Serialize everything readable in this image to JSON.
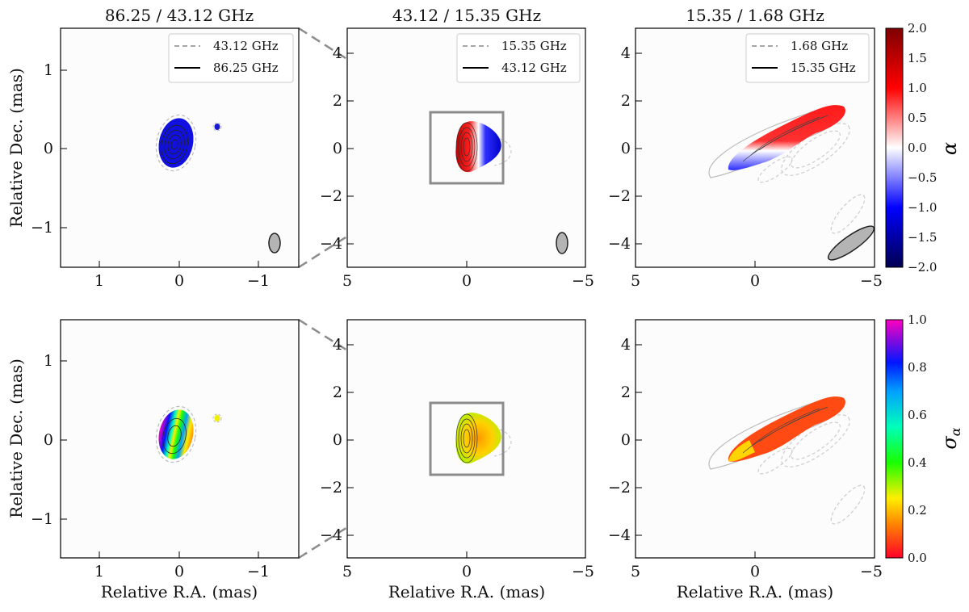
{
  "chart_data": [
    {
      "type": "heatmap",
      "title": "86.25 / 43.12 GHz",
      "quantity": "spectral index",
      "xlabel": "",
      "ylabel": "Relative Dec. (mas)",
      "xlim": [
        1.5,
        -1.5
      ],
      "ylim": [
        -1.5,
        1.5
      ],
      "xticks": [
        "1",
        "0",
        "−1"
      ],
      "yticks": [
        "1",
        "0",
        "−1"
      ],
      "legend": [
        {
          "label": "43.12 GHz",
          "style": "dashed"
        },
        {
          "label": "86.25 GHz",
          "style": "solid"
        }
      ],
      "legend_location": "top-right",
      "beam_shown": true,
      "core_value": -0.9,
      "knot_value": -1.3
    },
    {
      "type": "heatmap",
      "title": "43.12 / 15.35 GHz",
      "quantity": "spectral index",
      "xlabel": "",
      "ylabel": "",
      "xlim": [
        5,
        -5
      ],
      "ylim": [
        -5,
        5
      ],
      "xticks": [
        "5",
        "0",
        "−5"
      ],
      "yticks": [
        "4",
        "2",
        "0",
        "−2",
        "−4"
      ],
      "legend": [
        {
          "label": "15.35 GHz",
          "style": "dashed"
        },
        {
          "label": "43.12 GHz",
          "style": "solid"
        }
      ],
      "legend_location": "top-right",
      "beam_shown": true,
      "zoom_box": [
        -1.5,
        1.5,
        -1.5,
        1.5
      ],
      "east_value": 1.4,
      "west_value": -1.3
    },
    {
      "type": "heatmap",
      "title": "15.35 / 1.68 GHz",
      "quantity": "spectral index",
      "xlabel": "",
      "ylabel": "",
      "xlim": [
        5,
        -5
      ],
      "ylim": [
        -5,
        5
      ],
      "xticks": [
        "5",
        "0",
        "−5"
      ],
      "yticks": [
        "4",
        "2",
        "0",
        "−2",
        "−4"
      ],
      "legend": [
        {
          "label": "1.68 GHz",
          "style": "dashed"
        },
        {
          "label": "15.35 GHz",
          "style": "solid"
        }
      ],
      "legend_location": "top-right",
      "beam_shown": true,
      "north_edge_value": 1.3,
      "south_edge_value": -1.0
    },
    {
      "type": "heatmap",
      "title": "",
      "quantity": "spectral index uncertainty",
      "xlabel": "Relative R.A. (mas)",
      "ylabel": "Relative Dec. (mas)",
      "xlim": [
        1.5,
        -1.5
      ],
      "ylim": [
        -1.5,
        1.5
      ],
      "xticks": [
        "1",
        "0",
        "−1"
      ],
      "yticks": [
        "1",
        "0",
        "−1"
      ]
    },
    {
      "type": "heatmap",
      "title": "",
      "quantity": "spectral index uncertainty",
      "xlabel": "Relative R.A. (mas)",
      "ylabel": "",
      "xlim": [
        5,
        -5
      ],
      "ylim": [
        -5,
        5
      ],
      "xticks": [
        "5",
        "0",
        "−5"
      ],
      "yticks": [
        "4",
        "2",
        "0",
        "−2",
        "−4"
      ],
      "zoom_box": [
        -1.5,
        1.5,
        -1.5,
        1.5
      ]
    },
    {
      "type": "heatmap",
      "title": "",
      "quantity": "spectral index uncertainty",
      "xlabel": "Relative R.A. (mas)",
      "ylabel": "",
      "xlim": [
        5,
        -5
      ],
      "ylim": [
        -5,
        5
      ],
      "xticks": [
        "5",
        "0",
        "−5"
      ],
      "yticks": [
        "4",
        "2",
        "0",
        "−2",
        "−4"
      ]
    }
  ],
  "colorbars": [
    {
      "label": "α",
      "min": -2.0,
      "max": 2.0,
      "ticks": [
        "2.0",
        "1.5",
        "1.0",
        "0.5",
        "0.0",
        "−0.5",
        "−1.0",
        "−1.5",
        "−2.0"
      ],
      "colormap": "seismic"
    },
    {
      "label": "σ",
      "label_sub": "α",
      "min": 0.0,
      "max": 1.0,
      "ticks": [
        "1.0",
        "0.8",
        "0.6",
        "0.4",
        "0.2",
        "0.0"
      ],
      "colormap": "gist_rainbow"
    }
  ],
  "colors": {
    "axes": "#000000",
    "zoom_connector": "#8c8c8c",
    "dashed_contour": "#c8c8c8",
    "beam_fill": "#b4b4b4"
  }
}
